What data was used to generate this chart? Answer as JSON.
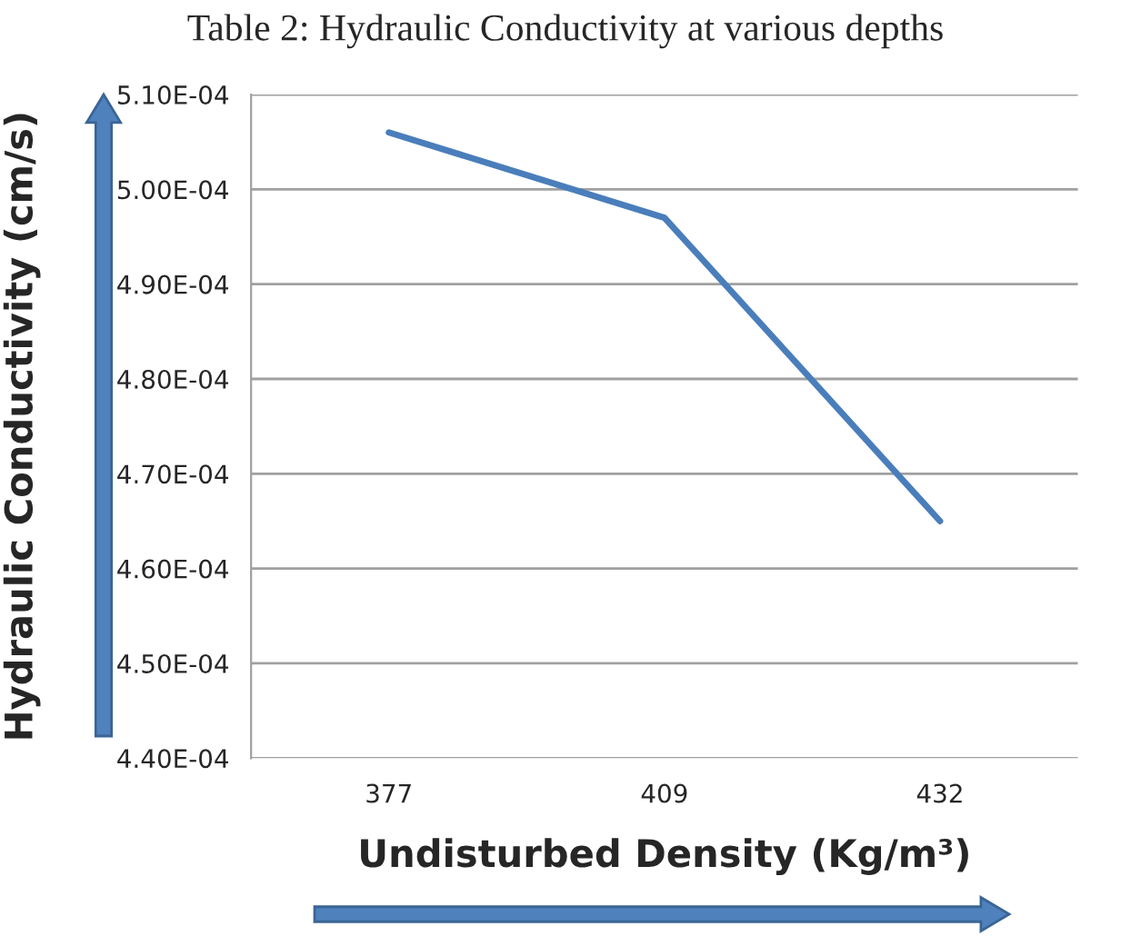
{
  "chart_data": {
    "type": "line",
    "title": "Table 2: Hydraulic Conductivity at various depths",
    "xlabel": "Undisturbed Density (Kg/m³)",
    "ylabel": "Hydraulic Conductivity (cm/s)",
    "categories": [
      "377",
      "409",
      "432"
    ],
    "series": [
      {
        "color": "#4a7ebb",
        "values": [
          0.000506,
          0.000497,
          0.000465
        ]
      }
    ],
    "ylim": [
      0.00044,
      0.00051
    ],
    "yticks": [
      {
        "value": 0.00044,
        "label": "4.40E-04"
      },
      {
        "value": 0.00045,
        "label": "4.50E-04"
      },
      {
        "value": 0.00046,
        "label": "4.60E-04"
      },
      {
        "value": 0.00047,
        "label": "4.70E-04"
      },
      {
        "value": 0.00048,
        "label": "4.80E-04"
      },
      {
        "value": 0.00049,
        "label": "4.90E-04"
      },
      {
        "value": 0.0005,
        "label": "5.00E-04"
      },
      {
        "value": 0.00051,
        "label": "5.10E-04"
      }
    ],
    "grid": "y",
    "marker": "none",
    "line_style": "solid",
    "legend": false
  }
}
